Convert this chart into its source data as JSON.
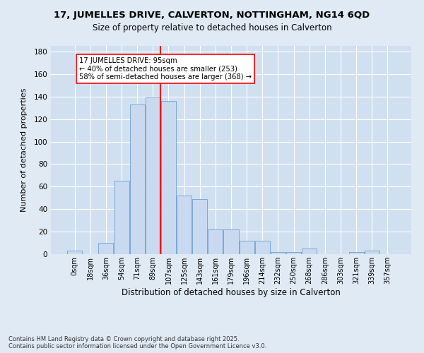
{
  "title_line1": "17, JUMELLES DRIVE, CALVERTON, NOTTINGHAM, NG14 6QD",
  "title_line2": "Size of property relative to detached houses in Calverton",
  "xlabel": "Distribution of detached houses by size in Calverton",
  "ylabel": "Number of detached properties",
  "bar_labels": [
    "0sqm",
    "18sqm",
    "36sqm",
    "54sqm",
    "71sqm",
    "89sqm",
    "107sqm",
    "125sqm",
    "143sqm",
    "161sqm",
    "179sqm",
    "196sqm",
    "214sqm",
    "232sqm",
    "250sqm",
    "268sqm",
    "286sqm",
    "303sqm",
    "321sqm",
    "339sqm",
    "357sqm"
  ],
  "bar_heights": [
    3,
    0,
    10,
    65,
    133,
    139,
    136,
    52,
    49,
    22,
    22,
    12,
    12,
    2,
    2,
    5,
    0,
    0,
    2,
    3,
    0
  ],
  "bar_color": "#c9d9f0",
  "bar_edge_color": "#7aa8d4",
  "vline_x": 5.5,
  "vline_color": "red",
  "annotation_title": "17 JUMELLES DRIVE: 95sqm",
  "annotation_line2": "← 40% of detached houses are smaller (253)",
  "annotation_line3": "58% of semi-detached houses are larger (368) →",
  "annotation_box_color": "white",
  "annotation_box_edge": "red",
  "ylim": [
    0,
    185
  ],
  "yticks": [
    0,
    20,
    40,
    60,
    80,
    100,
    120,
    140,
    160,
    180
  ],
  "footnote": "Contains HM Land Registry data © Crown copyright and database right 2025.\nContains public sector information licensed under the Open Government Licence v3.0.",
  "bg_color": "#e0eaf5",
  "plot_bg_color": "#d0e0f0",
  "grid_color": "white",
  "title1_fontsize": 9.5,
  "title2_fontsize": 8.5,
  "xlabel_fontsize": 8.5,
  "ylabel_fontsize": 8,
  "footnote_fontsize": 6,
  "annot_fontsize": 7.2,
  "xtick_fontsize": 7,
  "ytick_fontsize": 7.5
}
